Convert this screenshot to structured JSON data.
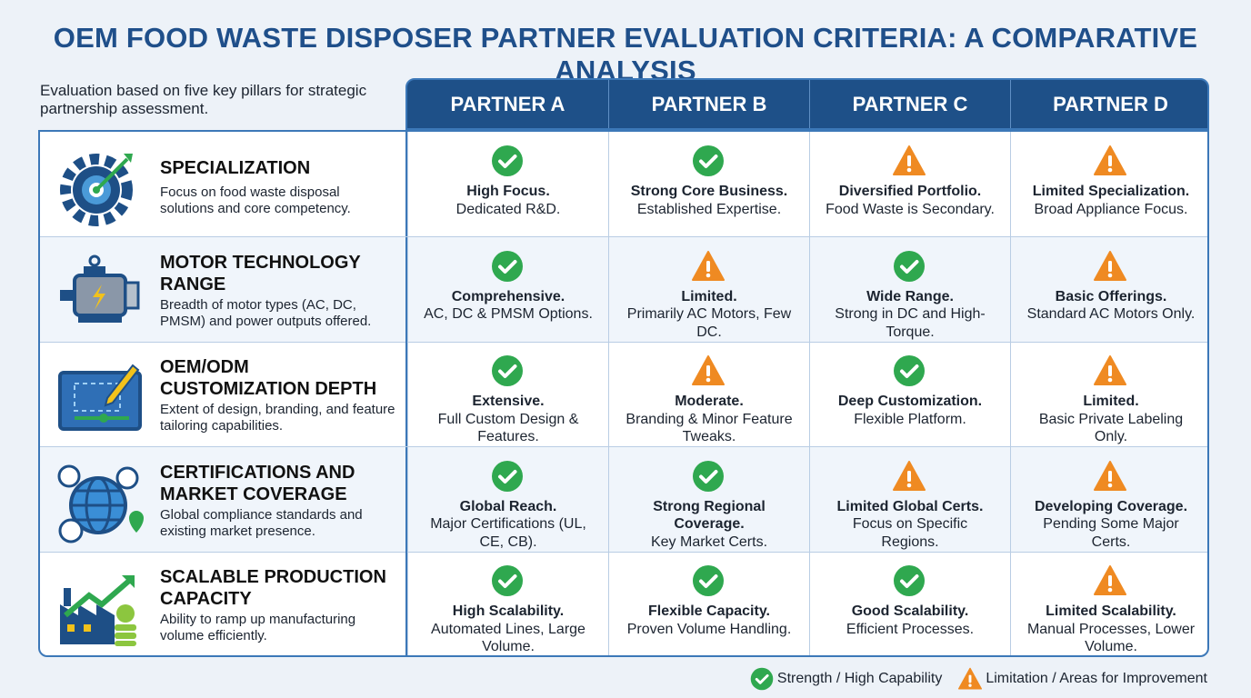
{
  "title": "OEM FOOD WASTE DISPOSER PARTNER EVALUATION CRITERIA: A COMPARATIVE ANALYSIS",
  "intro": "Evaluation based on five key pillars for strategic partnership assessment.",
  "partners": [
    "PARTNER A",
    "PARTNER B",
    "PARTNER C",
    "PARTNER D"
  ],
  "criteria": [
    {
      "title": "SPECIALIZATION",
      "description": "Focus on food waste disposal solutions and core competency.",
      "cells": [
        {
          "status": "strength",
          "headline": "High Focus.",
          "detail": "Dedicated R&D."
        },
        {
          "status": "strength",
          "headline": "Strong Core Business.",
          "detail": "Established Expertise."
        },
        {
          "status": "limitation",
          "headline": "Diversified Portfolio.",
          "detail": "Food Waste is Secondary."
        },
        {
          "status": "limitation",
          "headline": "Limited Specialization.",
          "detail": "Broad Appliance Focus."
        }
      ]
    },
    {
      "title": "MOTOR TECHNOLOGY RANGE",
      "description": "Breadth of motor types (AC, DC, PMSM) and power outputs offered.",
      "cells": [
        {
          "status": "strength",
          "headline": "Comprehensive.",
          "detail": "AC, DC & PMSM Options."
        },
        {
          "status": "limitation",
          "headline": "Limited.",
          "detail": "Primarily AC Motors, Few DC."
        },
        {
          "status": "strength",
          "headline": "Wide Range.",
          "detail": "Strong in DC and High-Torque."
        },
        {
          "status": "limitation",
          "headline": "Basic Offerings.",
          "detail": "Standard AC Motors Only."
        }
      ]
    },
    {
      "title": "OEM/ODM CUSTOMIZATION DEPTH",
      "description": "Extent of design, branding, and feature tailoring capabilities.",
      "cells": [
        {
          "status": "strength",
          "headline": "Extensive.",
          "detail": "Full Custom Design & Features."
        },
        {
          "status": "limitation",
          "headline": "Moderate.",
          "detail": "Branding & Minor Feature Tweaks."
        },
        {
          "status": "strength",
          "headline": "Deep Customization.",
          "detail": "Flexible Platform."
        },
        {
          "status": "limitation",
          "headline": "Limited.",
          "detail": "Basic Private Labeling Only."
        }
      ]
    },
    {
      "title": "CERTIFICATIONS AND MARKET COVERAGE",
      "description": "Global compliance standards and existing market presence.",
      "cells": [
        {
          "status": "strength",
          "headline": "Global Reach.",
          "detail": "Major Certifications (UL, CE, CB)."
        },
        {
          "status": "strength",
          "headline": "Strong Regional Coverage.",
          "detail": "Key Market Certs."
        },
        {
          "status": "limitation",
          "headline": "Limited Global Certs.",
          "detail": "Focus on Specific Regions."
        },
        {
          "status": "limitation",
          "headline": "Developing Coverage.",
          "detail": "Pending Some Major Certs."
        }
      ]
    },
    {
      "title": "SCALABLE PRODUCTION CAPACITY",
      "description": "Ability to ramp up manufacturing volume efficiently.",
      "cells": [
        {
          "status": "strength",
          "headline": "High Scalability.",
          "detail": "Automated Lines, Large Volume."
        },
        {
          "status": "strength",
          "headline": "Flexible Capacity.",
          "detail": "Proven Volume Handling."
        },
        {
          "status": "strength",
          "headline": "Good Scalability.",
          "detail": "Efficient Processes."
        },
        {
          "status": "limitation",
          "headline": "Limited Scalability.",
          "detail": "Manual Processes, Lower Volume."
        }
      ]
    }
  ],
  "legend": [
    {
      "status": "strength",
      "label": "Strength / High Capability"
    },
    {
      "status": "limitation",
      "label": "Limitation / Areas for Improvement"
    }
  ]
}
